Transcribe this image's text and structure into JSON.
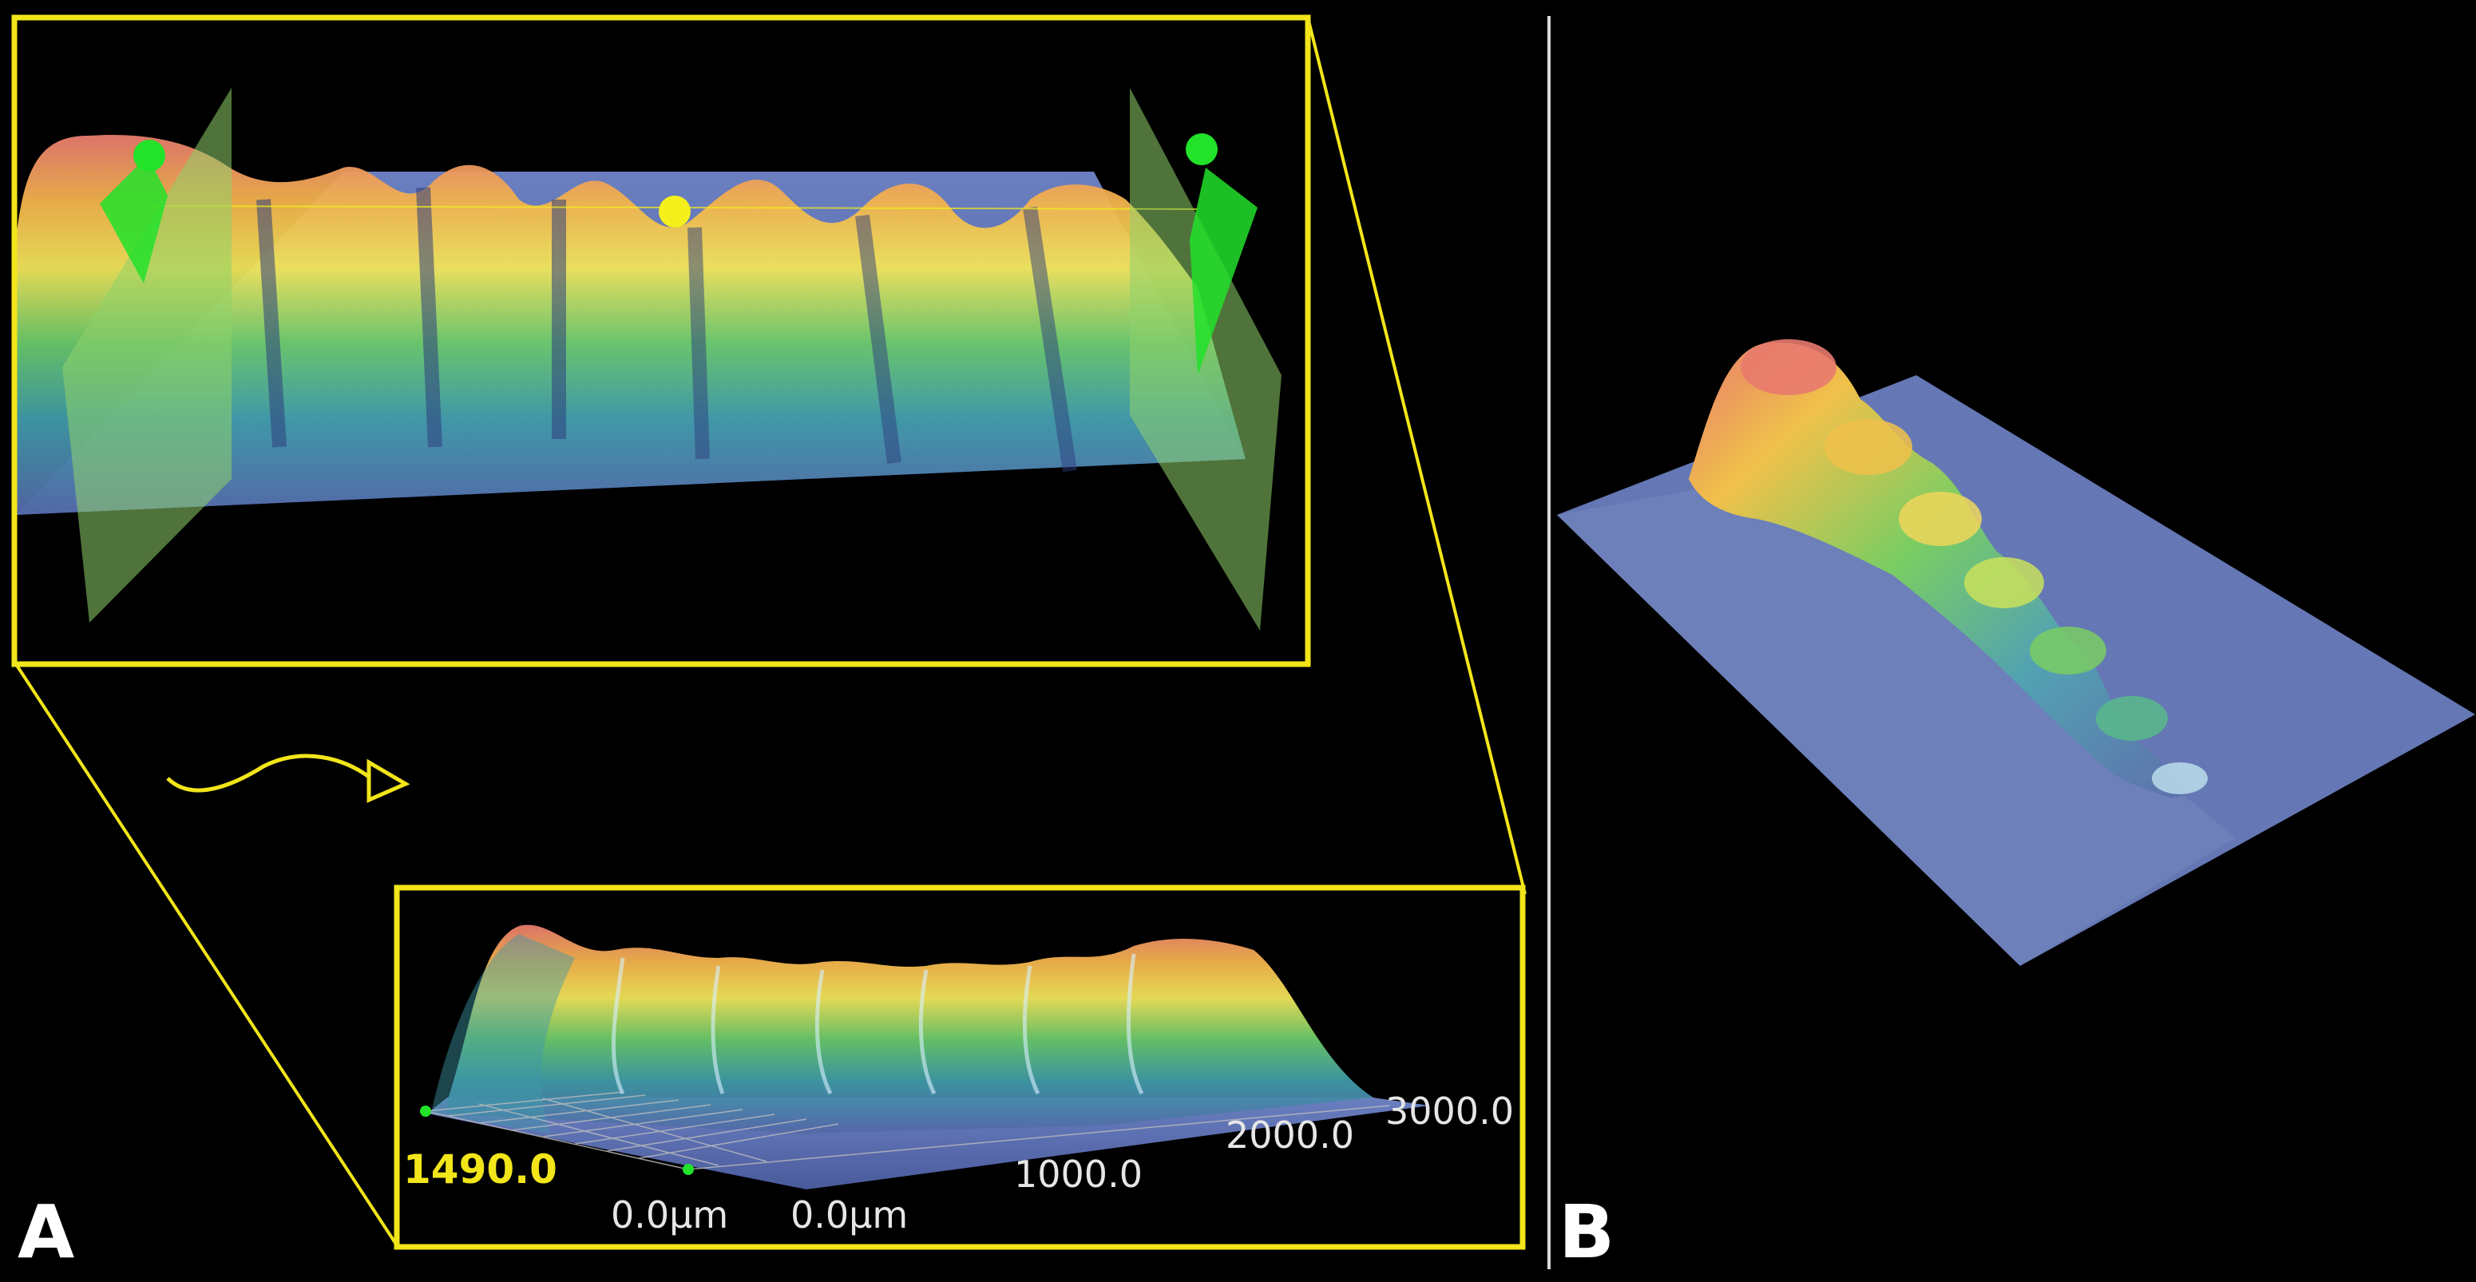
{
  "panels": {
    "a": {
      "letter": "A"
    },
    "b": {
      "letter": "B"
    }
  },
  "axis_labels": {
    "y_extent": "1490.0",
    "origin_left": "0.0µm",
    "origin_right": "0.0µm",
    "tick_1000": "1000.0",
    "tick_2000": "2000.0",
    "tick_3000": "3000.0"
  },
  "colors": {
    "background": "#000000",
    "frame": "#f2e51a",
    "divider": "#d9d9d9",
    "cut_plane": "#8fd16a",
    "marker_green": "#22e22a",
    "marker_yellow": "#f5ef1c"
  },
  "icons": {
    "rotation_arrow": "curved-arrow-icon",
    "probe_markers": "sphere-marker-icon"
  }
}
